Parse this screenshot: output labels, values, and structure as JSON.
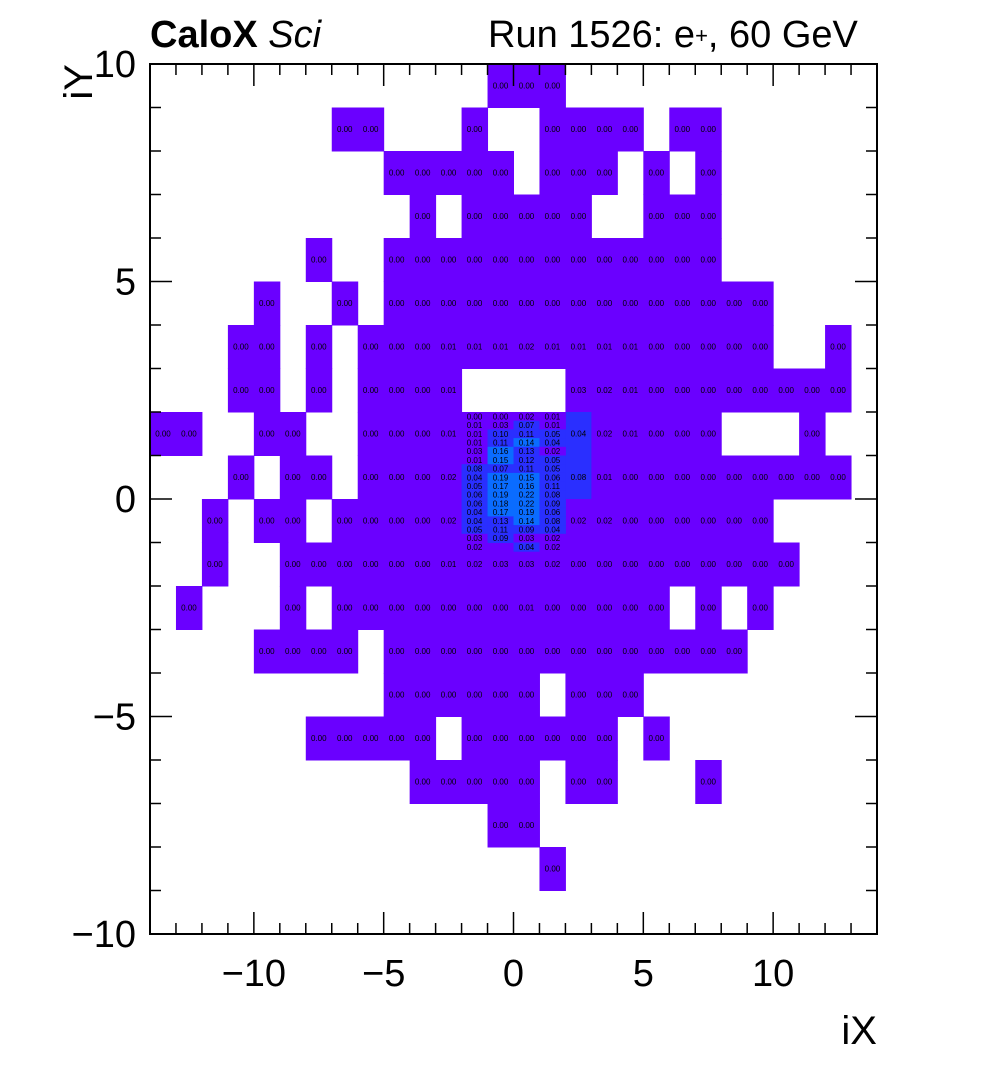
{
  "header": {
    "brand": "CaloX",
    "tag": "Sci",
    "run_prefix": "Run 1526: e",
    "run_sup": "+",
    "run_suffix": ", 60 GeV"
  },
  "chart_data": {
    "type": "heatmap",
    "xlabel": "iX",
    "ylabel": "iY",
    "xlim": [
      -14,
      14
    ],
    "ylim": [
      -10,
      10
    ],
    "xticks": [
      -10,
      -5,
      0,
      5,
      10
    ],
    "yticks": [
      -10,
      -5,
      0,
      5,
      10
    ],
    "colors": {
      "base": "#6a00ff",
      "mid": "#2a2fff",
      "high": "#0a6cff",
      "text": "#000000",
      "axis": "#000000",
      "background": "#ffffff"
    },
    "cells": [
      [
        -1,
        9,
        "0.00"
      ],
      [
        0,
        9,
        "0.00"
      ],
      [
        1,
        9,
        "0.00"
      ],
      [
        -7,
        8,
        "0.00"
      ],
      [
        -6,
        8,
        "0.00"
      ],
      [
        -2,
        8,
        "0.00"
      ],
      [
        1,
        8,
        "0.00"
      ],
      [
        2,
        8,
        "0.00"
      ],
      [
        3,
        8,
        "0.00"
      ],
      [
        4,
        8,
        "0.00"
      ],
      [
        6,
        8,
        "0.00"
      ],
      [
        7,
        8,
        "0.00"
      ],
      [
        -5,
        7,
        "0.00"
      ],
      [
        -4,
        7,
        "0.00"
      ],
      [
        -3,
        7,
        "0.00"
      ],
      [
        -2,
        7,
        "0.00"
      ],
      [
        -1,
        7,
        "0.00"
      ],
      [
        1,
        7,
        "0.00"
      ],
      [
        2,
        7,
        "0.00"
      ],
      [
        3,
        7,
        "0.00"
      ],
      [
        5,
        7,
        "0.00"
      ],
      [
        7,
        7,
        "0.00"
      ],
      [
        -4,
        6,
        "0.00"
      ],
      [
        -2,
        6,
        "0.00"
      ],
      [
        -1,
        6,
        "0.00"
      ],
      [
        0,
        6,
        "0.00"
      ],
      [
        1,
        6,
        "0.00"
      ],
      [
        2,
        6,
        "0.00"
      ],
      [
        5,
        6,
        "0.00"
      ],
      [
        6,
        6,
        "0.00"
      ],
      [
        7,
        6,
        "0.00"
      ],
      [
        -8,
        5,
        "0.00"
      ],
      [
        -5,
        5,
        "0.00"
      ],
      [
        -4,
        5,
        "0.00"
      ],
      [
        -3,
        5,
        "0.00"
      ],
      [
        -2,
        5,
        "0.00"
      ],
      [
        -1,
        5,
        "0.00"
      ],
      [
        0,
        5,
        "0.00"
      ],
      [
        1,
        5,
        "0.00"
      ],
      [
        2,
        5,
        "0.00"
      ],
      [
        3,
        5,
        "0.00"
      ],
      [
        4,
        5,
        "0.00"
      ],
      [
        5,
        5,
        "0.00"
      ],
      [
        6,
        5,
        "0.00"
      ],
      [
        7,
        5,
        "0.00"
      ],
      [
        -10,
        4,
        "0.00"
      ],
      [
        -7,
        4,
        "0.00"
      ],
      [
        -5,
        4,
        "0.00"
      ],
      [
        -4,
        4,
        "0.00"
      ],
      [
        -3,
        4,
        "0.00"
      ],
      [
        -2,
        4,
        "0.00"
      ],
      [
        -1,
        4,
        "0.00"
      ],
      [
        0,
        4,
        "0.00"
      ],
      [
        1,
        4,
        "0.00"
      ],
      [
        2,
        4,
        "0.00"
      ],
      [
        3,
        4,
        "0.00"
      ],
      [
        4,
        4,
        "0.00"
      ],
      [
        5,
        4,
        "0.00"
      ],
      [
        6,
        4,
        "0.00"
      ],
      [
        7,
        4,
        "0.00"
      ],
      [
        8,
        4,
        "0.00"
      ],
      [
        9,
        4,
        "0.00"
      ],
      [
        -11,
        3,
        "0.00"
      ],
      [
        -10,
        3,
        "0.00"
      ],
      [
        -8,
        3,
        "0.00"
      ],
      [
        -6,
        3,
        "0.00"
      ],
      [
        -5,
        3,
        "0.00"
      ],
      [
        -4,
        3,
        "0.00"
      ],
      [
        -3,
        3,
        "0.01"
      ],
      [
        -2,
        3,
        "0.01"
      ],
      [
        -1,
        3,
        "0.01"
      ],
      [
        0,
        3,
        "0.02"
      ],
      [
        1,
        3,
        "0.01"
      ],
      [
        2,
        3,
        "0.01"
      ],
      [
        3,
        3,
        "0.01"
      ],
      [
        4,
        3,
        "0.01"
      ],
      [
        5,
        3,
        "0.00"
      ],
      [
        6,
        3,
        "0.00"
      ],
      [
        7,
        3,
        "0.00"
      ],
      [
        8,
        3,
        "0.00"
      ],
      [
        9,
        3,
        "0.00"
      ],
      [
        12,
        3,
        "0.00"
      ],
      [
        -11,
        2,
        "0.00"
      ],
      [
        -10,
        2,
        "0.00"
      ],
      [
        -8,
        2,
        "0.00"
      ],
      [
        -6,
        2,
        "0.00"
      ],
      [
        -5,
        2,
        "0.00"
      ],
      [
        -4,
        2,
        "0.00"
      ],
      [
        -3,
        2,
        "0.01"
      ],
      [
        2,
        2,
        "0.03"
      ],
      [
        3,
        2,
        "0.02"
      ],
      [
        4,
        2,
        "0.01"
      ],
      [
        5,
        2,
        "0.00"
      ],
      [
        6,
        2,
        "0.00"
      ],
      [
        7,
        2,
        "0.00"
      ],
      [
        8,
        2,
        "0.00"
      ],
      [
        9,
        2,
        "0.00"
      ],
      [
        10,
        2,
        "0.00"
      ],
      [
        11,
        2,
        "0.00"
      ],
      [
        12,
        2,
        "0.00"
      ],
      [
        -14,
        1,
        "0.00"
      ],
      [
        -13,
        1,
        "0.00"
      ],
      [
        -10,
        1,
        "0.00"
      ],
      [
        -9,
        1,
        "0.00"
      ],
      [
        -6,
        1,
        "0.00"
      ],
      [
        -5,
        1,
        "0.00"
      ],
      [
        -4,
        1,
        "0.00"
      ],
      [
        -3,
        1,
        "0.01"
      ],
      [
        2,
        1,
        "0.04"
      ],
      [
        3,
        1,
        "0.02"
      ],
      [
        4,
        1,
        "0.01"
      ],
      [
        5,
        1,
        "0.00"
      ],
      [
        6,
        1,
        "0.00"
      ],
      [
        7,
        1,
        "0.00"
      ],
      [
        11,
        1,
        "0.00"
      ],
      [
        -11,
        0,
        "0.00"
      ],
      [
        -9,
        0,
        "0.00"
      ],
      [
        -8,
        0,
        "0.00"
      ],
      [
        -6,
        0,
        "0.00"
      ],
      [
        -5,
        0,
        "0.00"
      ],
      [
        -4,
        0,
        "0.00"
      ],
      [
        -3,
        0,
        "0.02"
      ],
      [
        2,
        0,
        "0.08"
      ],
      [
        3,
        0,
        "0.01"
      ],
      [
        4,
        0,
        "0.00"
      ],
      [
        5,
        0,
        "0.00"
      ],
      [
        6,
        0,
        "0.00"
      ],
      [
        7,
        0,
        "0.00"
      ],
      [
        8,
        0,
        "0.00"
      ],
      [
        9,
        0,
        "0.00"
      ],
      [
        10,
        0,
        "0.00"
      ],
      [
        11,
        0,
        "0.00"
      ],
      [
        12,
        0,
        "0.00"
      ],
      [
        -12,
        -1,
        "0.00"
      ],
      [
        -10,
        -1,
        "0.00"
      ],
      [
        -9,
        -1,
        "0.00"
      ],
      [
        -7,
        -1,
        "0.00"
      ],
      [
        -6,
        -1,
        "0.00"
      ],
      [
        -5,
        -1,
        "0.00"
      ],
      [
        -4,
        -1,
        "0.00"
      ],
      [
        -3,
        -1,
        "0.02"
      ],
      [
        2,
        -1,
        "0.02"
      ],
      [
        3,
        -1,
        "0.02"
      ],
      [
        4,
        -1,
        "0.00"
      ],
      [
        5,
        -1,
        "0.00"
      ],
      [
        6,
        -1,
        "0.00"
      ],
      [
        7,
        -1,
        "0.00"
      ],
      [
        8,
        -1,
        "0.00"
      ],
      [
        9,
        -1,
        "0.00"
      ],
      [
        -12,
        -2,
        "0.00"
      ],
      [
        -9,
        -2,
        "0.00"
      ],
      [
        -8,
        -2,
        "0.00"
      ],
      [
        -7,
        -2,
        "0.00"
      ],
      [
        -6,
        -2,
        "0.00"
      ],
      [
        -5,
        -2,
        "0.00"
      ],
      [
        -4,
        -2,
        "0.00"
      ],
      [
        -3,
        -2,
        "0.01"
      ],
      [
        -2,
        -2,
        "0.02"
      ],
      [
        -1,
        -2,
        "0.03"
      ],
      [
        0,
        -2,
        "0.03"
      ],
      [
        1,
        -2,
        "0.02"
      ],
      [
        2,
        -2,
        "0.00"
      ],
      [
        3,
        -2,
        "0.00"
      ],
      [
        4,
        -2,
        "0.00"
      ],
      [
        5,
        -2,
        "0.00"
      ],
      [
        6,
        -2,
        "0.00"
      ],
      [
        7,
        -2,
        "0.00"
      ],
      [
        8,
        -2,
        "0.00"
      ],
      [
        9,
        -2,
        "0.00"
      ],
      [
        10,
        -2,
        "0.00"
      ],
      [
        -13,
        -3,
        "0.00"
      ],
      [
        -9,
        -3,
        "0.00"
      ],
      [
        -7,
        -3,
        "0.00"
      ],
      [
        -6,
        -3,
        "0.00"
      ],
      [
        -5,
        -3,
        "0.00"
      ],
      [
        -4,
        -3,
        "0.00"
      ],
      [
        -3,
        -3,
        "0.00"
      ],
      [
        -2,
        -3,
        "0.00"
      ],
      [
        -1,
        -3,
        "0.00"
      ],
      [
        0,
        -3,
        "0.01"
      ],
      [
        1,
        -3,
        "0.00"
      ],
      [
        2,
        -3,
        "0.00"
      ],
      [
        3,
        -3,
        "0.00"
      ],
      [
        4,
        -3,
        "0.00"
      ],
      [
        5,
        -3,
        "0.00"
      ],
      [
        7,
        -3,
        "0.00"
      ],
      [
        9,
        -3,
        "0.00"
      ],
      [
        -10,
        -4,
        "0.00"
      ],
      [
        -9,
        -4,
        "0.00"
      ],
      [
        -8,
        -4,
        "0.00"
      ],
      [
        -7,
        -4,
        "0.00"
      ],
      [
        -5,
        -4,
        "0.00"
      ],
      [
        -4,
        -4,
        "0.00"
      ],
      [
        -3,
        -4,
        "0.00"
      ],
      [
        -2,
        -4,
        "0.00"
      ],
      [
        -1,
        -4,
        "0.00"
      ],
      [
        0,
        -4,
        "0.00"
      ],
      [
        1,
        -4,
        "0.00"
      ],
      [
        2,
        -4,
        "0.00"
      ],
      [
        3,
        -4,
        "0.00"
      ],
      [
        4,
        -4,
        "0.00"
      ],
      [
        5,
        -4,
        "0.00"
      ],
      [
        6,
        -4,
        "0.00"
      ],
      [
        7,
        -4,
        "0.00"
      ],
      [
        8,
        -4,
        "0.00"
      ],
      [
        -5,
        -5,
        "0.00"
      ],
      [
        -4,
        -5,
        "0.00"
      ],
      [
        -3,
        -5,
        "0.00"
      ],
      [
        -2,
        -5,
        "0.00"
      ],
      [
        -1,
        -5,
        "0.00"
      ],
      [
        0,
        -5,
        "0.00"
      ],
      [
        2,
        -5,
        "0.00"
      ],
      [
        3,
        -5,
        "0.00"
      ],
      [
        4,
        -5,
        "0.00"
      ],
      [
        -8,
        -6,
        "0.00"
      ],
      [
        -7,
        -6,
        "0.00"
      ],
      [
        -6,
        -6,
        "0.00"
      ],
      [
        -5,
        -6,
        "0.00"
      ],
      [
        -4,
        -6,
        "0.00"
      ],
      [
        -2,
        -6,
        "0.00"
      ],
      [
        -1,
        -6,
        "0.00"
      ],
      [
        0,
        -6,
        "0.00"
      ],
      [
        1,
        -6,
        "0.00"
      ],
      [
        2,
        -6,
        "0.00"
      ],
      [
        3,
        -6,
        "0.00"
      ],
      [
        5,
        -6,
        "0.00"
      ],
      [
        -4,
        -7,
        "0.00"
      ],
      [
        -3,
        -7,
        "0.00"
      ],
      [
        -2,
        -7,
        "0.00"
      ],
      [
        -1,
        -7,
        "0.00"
      ],
      [
        0,
        -7,
        "0.00"
      ],
      [
        2,
        -7,
        "0.00"
      ],
      [
        3,
        -7,
        "0.00"
      ],
      [
        7,
        -7,
        "0.00"
      ],
      [
        -1,
        -8,
        "0.00"
      ],
      [
        0,
        -8,
        "0.00"
      ],
      [
        1,
        -9,
        "0.00"
      ]
    ],
    "subcells": [
      [
        -2.0,
        1.8,
        "0.00"
      ],
      [
        -1.0,
        1.8,
        "0.00"
      ],
      [
        0.0,
        1.8,
        "0.02"
      ],
      [
        1.0,
        1.8,
        "0.01"
      ],
      [
        -2.0,
        1.6,
        "0.01"
      ],
      [
        -1.0,
        1.6,
        "0.03"
      ],
      [
        0.0,
        1.6,
        "0.07"
      ],
      [
        1.0,
        1.6,
        "0.01"
      ],
      [
        -2.0,
        1.4,
        "0.01"
      ],
      [
        -1.0,
        1.4,
        "0.10"
      ],
      [
        0.0,
        1.4,
        "0.11"
      ],
      [
        1.0,
        1.4,
        "0.05"
      ],
      [
        -2.0,
        1.2,
        "0.01"
      ],
      [
        -1.0,
        1.2,
        "0.11"
      ],
      [
        0.0,
        1.2,
        "0.14"
      ],
      [
        1.0,
        1.2,
        "0.04"
      ],
      [
        -2.0,
        1.0,
        "0.03"
      ],
      [
        -1.0,
        1.0,
        "0.16"
      ],
      [
        0.0,
        1.0,
        "0.13"
      ],
      [
        1.0,
        1.0,
        "0.02"
      ],
      [
        -2.0,
        0.8,
        "0.01"
      ],
      [
        -1.0,
        0.8,
        "0.15"
      ],
      [
        0.0,
        0.8,
        "0.12"
      ],
      [
        1.0,
        0.8,
        "0.05"
      ],
      [
        -2.0,
        0.6,
        "0.08"
      ],
      [
        -1.0,
        0.6,
        "0.07"
      ],
      [
        0.0,
        0.6,
        "0.11"
      ],
      [
        1.0,
        0.6,
        "0.05"
      ],
      [
        -2.0,
        0.4,
        "0.04"
      ],
      [
        -1.0,
        0.4,
        "0.19"
      ],
      [
        0.0,
        0.4,
        "0.15"
      ],
      [
        1.0,
        0.4,
        "0.06"
      ],
      [
        -2.0,
        0.2,
        "0.05"
      ],
      [
        -1.0,
        0.2,
        "0.17"
      ],
      [
        0.0,
        0.2,
        "0.16"
      ],
      [
        1.0,
        0.2,
        "0.11"
      ],
      [
        -2.0,
        0.0,
        "0.06"
      ],
      [
        -1.0,
        0.0,
        "0.19"
      ],
      [
        0.0,
        0.0,
        "0.22"
      ],
      [
        1.0,
        0.0,
        "0.08"
      ],
      [
        -2.0,
        -0.2,
        "0.06"
      ],
      [
        -1.0,
        -0.2,
        "0.18"
      ],
      [
        0.0,
        -0.2,
        "0.22"
      ],
      [
        1.0,
        -0.2,
        "0.09"
      ],
      [
        -2.0,
        -0.4,
        "0.04"
      ],
      [
        -1.0,
        -0.4,
        "0.17"
      ],
      [
        0.0,
        -0.4,
        "0.19"
      ],
      [
        1.0,
        -0.4,
        "0.06"
      ],
      [
        -2.0,
        -0.6,
        "0.04"
      ],
      [
        -1.0,
        -0.6,
        "0.13"
      ],
      [
        0.0,
        -0.6,
        "0.14"
      ],
      [
        1.0,
        -0.6,
        "0.08"
      ],
      [
        -2.0,
        -0.8,
        "0.05"
      ],
      [
        -1.0,
        -0.8,
        "0.11"
      ],
      [
        0.0,
        -0.8,
        "0.09"
      ],
      [
        1.0,
        -0.8,
        "0.04"
      ],
      [
        -2.0,
        -1.0,
        "0.03"
      ],
      [
        -1.0,
        -1.0,
        "0.09"
      ],
      [
        0.0,
        -1.0,
        "0.03"
      ],
      [
        1.0,
        -1.0,
        "0.02"
      ],
      [
        -2.0,
        -1.2,
        "0.02"
      ],
      [
        0.0,
        -1.2,
        "0.04"
      ],
      [
        1.0,
        -1.2,
        "0.02"
      ]
    ]
  }
}
